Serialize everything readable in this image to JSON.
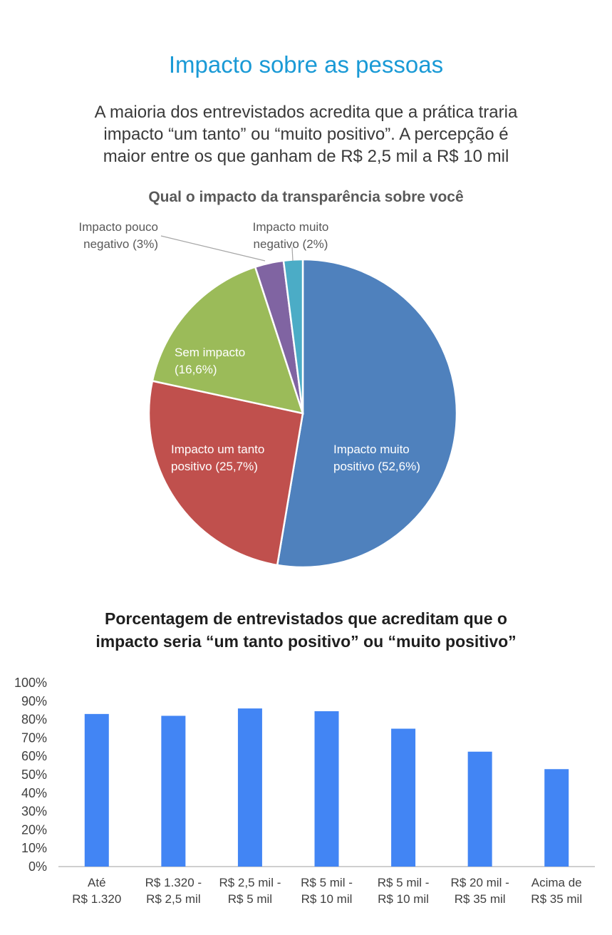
{
  "header": {
    "title": "Impacto sobre as pessoas",
    "subtitle_lines": [
      "A maioria dos entrevistados acredita que a prática traria",
      "impacto “um tanto” ou “muito positivo”. A percepção é",
      "maior entre os que ganham de R$ 2,5 mil a R$ 10 mil"
    ]
  },
  "chart_data": [
    {
      "type": "pie",
      "title": "Qual o impacto da transparência sobre você",
      "slices": [
        {
          "label_lines": [
            "Impacto muito",
            "positivo (52,6%)"
          ],
          "value": 52.6,
          "color": "#4f81bd"
        },
        {
          "label_lines": [
            "Impacto um tanto",
            "positivo (25,7%)"
          ],
          "value": 25.7,
          "color": "#c0504d"
        },
        {
          "label_lines": [
            "Sem impacto",
            "(16,6%)"
          ],
          "value": 16.6,
          "color": "#9bbb59"
        },
        {
          "label_lines": [
            "Impacto pouco",
            "negativo (3%)"
          ],
          "value": 3.0,
          "color": "#8064a2"
        },
        {
          "label_lines": [
            "Impacto muito",
            "negativo (2%)"
          ],
          "value": 2.0,
          "color": "#4bacc6"
        }
      ]
    },
    {
      "type": "bar",
      "title_lines": [
        "Porcentagem de entrevistados que acreditam que o",
        "impacto seria “um tanto positivo” ou “muito positivo”"
      ],
      "categories": [
        [
          "Até",
          "R$ 1.320"
        ],
        [
          "R$ 1.320 -",
          "R$ 2,5 mil"
        ],
        [
          "R$ 2,5 mil -",
          "R$ 5 mil"
        ],
        [
          "R$ 5 mil -",
          "R$ 10 mil"
        ],
        [
          "R$ 5 mil -",
          "R$ 10 mil"
        ],
        [
          "R$ 20 mil -",
          "R$ 35 mil"
        ],
        [
          "Acima de",
          "R$ 35 mil"
        ]
      ],
      "values": [
        83,
        82,
        86,
        84.5,
        75,
        62.5,
        53
      ],
      "ylim": [
        0,
        100
      ],
      "yticks": [
        "0%",
        "10%",
        "20%",
        "30%",
        "40%",
        "50%",
        "60%",
        "70%",
        "80%",
        "90%",
        "100%"
      ],
      "bar_color": "#4285f4"
    }
  ]
}
